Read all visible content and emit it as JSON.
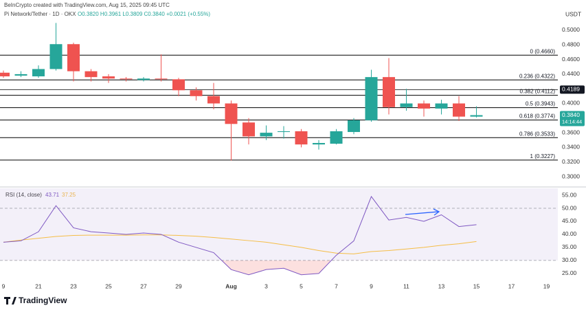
{
  "chart_data": {
    "type": "candlestick",
    "header": "BeInCrypto created with TradingView.com, Aug 15, 2025 09:45 UTC",
    "symbol_legend": "Pi Network/Tether · 1D · OKX",
    "ohlc_text": "O0.3820 H0.3961 L0.3809 C0.3840 +0.0021 (+0.55%)",
    "currency": "USDT",
    "brand": "TradingView",
    "categories": [
      "9",
      null,
      "21",
      null,
      "23",
      null,
      "25",
      null,
      "27",
      null,
      "29",
      null,
      null,
      "Aug",
      null,
      "3",
      null,
      "5",
      null,
      "7",
      null,
      "9",
      null,
      "11",
      null,
      "13",
      null,
      "15",
      null,
      "17",
      null,
      "19"
    ],
    "open": [
      0.442,
      0.438,
      0.437,
      0.447,
      0.481,
      0.444,
      0.437,
      0.434,
      0.432,
      0.434,
      0.433,
      0.418,
      0.41,
      0.4,
      0.374,
      0.355,
      0.361,
      0.362,
      0.344,
      0.345,
      0.361,
      0.377,
      0.436,
      0.395,
      0.4,
      0.393,
      0.4,
      0.382,
      null,
      null,
      null,
      null
    ],
    "high": [
      0.445,
      0.444,
      0.452,
      0.51,
      0.483,
      0.447,
      0.44,
      0.436,
      0.436,
      0.467,
      0.435,
      0.422,
      0.428,
      0.404,
      0.38,
      0.37,
      0.369,
      0.365,
      0.35,
      0.365,
      0.38,
      0.446,
      0.462,
      0.42,
      0.404,
      0.405,
      0.41,
      0.3961,
      null,
      null,
      null,
      null
    ],
    "low": [
      0.435,
      0.436,
      0.435,
      0.445,
      0.43,
      0.43,
      0.428,
      0.43,
      0.43,
      0.43,
      0.41,
      0.404,
      0.392,
      0.322,
      0.344,
      0.35,
      0.352,
      0.34,
      0.337,
      0.344,
      0.358,
      0.375,
      0.385,
      0.39,
      0.382,
      0.385,
      0.376,
      0.3809,
      null,
      null,
      null,
      null
    ],
    "close": [
      0.437,
      0.44,
      0.447,
      0.481,
      0.444,
      0.436,
      0.434,
      0.433,
      0.434,
      0.433,
      0.418,
      0.41,
      0.4,
      0.372,
      0.355,
      0.36,
      0.362,
      0.344,
      0.346,
      0.362,
      0.377,
      0.436,
      0.395,
      0.4,
      0.393,
      0.4,
      0.382,
      0.384,
      null,
      null,
      null,
      null
    ],
    "up_color": "#26a69a",
    "down_color": "#ef5350",
    "ylim": [
      0.2878,
      0.5413
    ],
    "yticks": [
      {
        "value": 0.5,
        "label": "0.5000"
      },
      {
        "value": 0.48,
        "label": "0.4800"
      },
      {
        "value": 0.46,
        "label": "0.4600"
      },
      {
        "value": 0.44,
        "label": "0.4400"
      },
      {
        "value": 0.4,
        "label": "0.4000"
      },
      {
        "value": 0.36,
        "label": "0.3600"
      },
      {
        "value": 0.34,
        "label": "0.3400"
      },
      {
        "value": 0.32,
        "label": "0.3200"
      },
      {
        "value": 0.3,
        "label": "0.3000"
      }
    ],
    "fib_levels": [
      {
        "value": 0.466,
        "label": "0 (0.4660)"
      },
      {
        "value": 0.4322,
        "label": "0.236 (0.4322)"
      },
      {
        "value": 0.4112,
        "label": "0.382 (0.4112)"
      },
      {
        "value": 0.3943,
        "label": "0.5 (0.3943)"
      },
      {
        "value": 0.3774,
        "label": "0.618 (0.3774)"
      },
      {
        "value": 0.3533,
        "label": "0.786 (0.3533)"
      },
      {
        "value": 0.3227,
        "label": "1 (0.3227)"
      }
    ],
    "marked_level": {
      "value": 0.4189,
      "label": "0.4189"
    },
    "last_price": {
      "value": 0.384,
      "label": "0.3840"
    },
    "countdown": "14:14:44",
    "rsi_title": "RSI (14, close)",
    "rsi_legend_values": [
      43.71,
      37.25
    ],
    "rsi_series": [
      {
        "name": "RSI",
        "color": "#7e57c2",
        "values": [
          37,
          37.5,
          41,
          51,
          42.5,
          41,
          40.5,
          40,
          40.5,
          40,
          37,
          35,
          33,
          26.5,
          24.5,
          26.5,
          27,
          24.5,
          25,
          32,
          37.5,
          54.5,
          45.5,
          46.5,
          45,
          47.5,
          43,
          43.71,
          null,
          null,
          null,
          null
        ]
      },
      {
        "name": "RSI MA",
        "color": "#f5bd45",
        "values": [
          37,
          37.8,
          38.5,
          39.2,
          39.6,
          39.7,
          39.7,
          39.7,
          39.8,
          39.8,
          39.6,
          39.3,
          38.8,
          38.2,
          37.6,
          37,
          36,
          35,
          33.8,
          32.8,
          32.5,
          33.4,
          33.8,
          34.4,
          35,
          35.8,
          36.4,
          37.25,
          null,
          null,
          null,
          null
        ]
      }
    ],
    "rsi_ylim": [
      21.8,
      57.65
    ],
    "rsi_yticks": [
      {
        "value": 55,
        "label": "55.00"
      },
      {
        "value": 50,
        "label": "50.00"
      },
      {
        "value": 45,
        "label": "45.00"
      },
      {
        "value": 40,
        "label": "40.00"
      },
      {
        "value": 35,
        "label": "35.00"
      },
      {
        "value": 30,
        "label": "30.00"
      },
      {
        "value": 25,
        "label": "25.00"
      }
    ],
    "rsi_bands": [
      50,
      30
    ]
  }
}
